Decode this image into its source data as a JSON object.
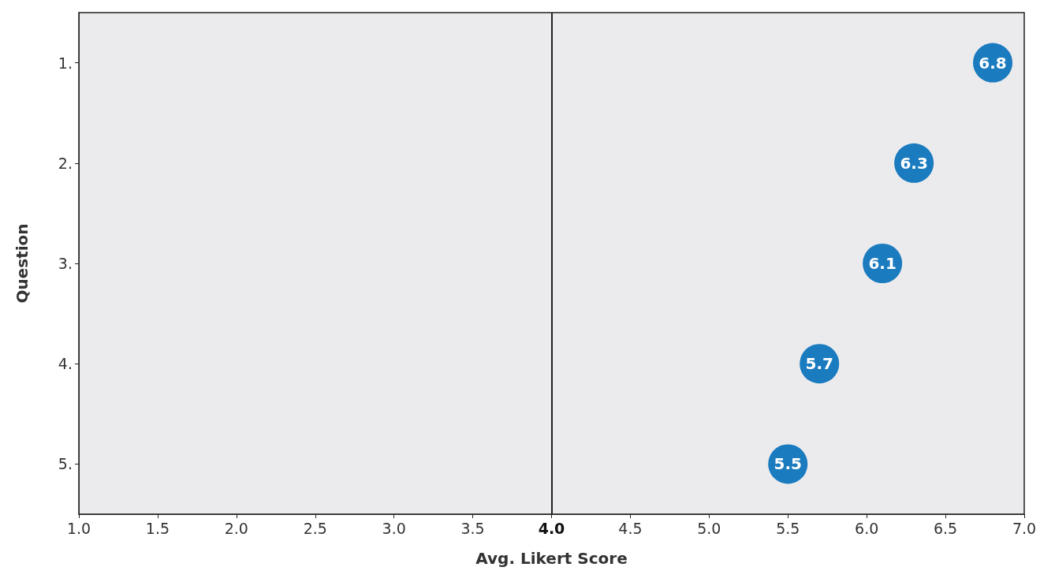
{
  "chart_data": {
    "type": "scatter",
    "orientation": "horizontal",
    "xlabel": "Avg. Likert Score",
    "ylabel": "Question",
    "categories": [
      "1.",
      "2.",
      "3.",
      "4.",
      "5."
    ],
    "values": [
      6.8,
      6.3,
      6.1,
      5.7,
      5.5
    ],
    "color": "#1a7bbf",
    "marker": "circle",
    "data_labels": true,
    "xlim": [
      1.0,
      7.0
    ],
    "xticks": [
      {
        "value": 1,
        "label": "1.0"
      },
      1.5,
      {
        "value": 2,
        "label": "2.0"
      },
      2.5,
      {
        "value": 3,
        "label": "3.0"
      },
      3.5,
      {
        "value": 4,
        "label": "4.0"
      },
      4.5,
      {
        "value": 5,
        "label": "5.0"
      },
      5.5,
      {
        "value": 6,
        "label": "6.0"
      },
      6.5,
      {
        "value": 7,
        "label": "7.0"
      }
    ],
    "ref_lines": [
      {
        "axis": "x",
        "value": 4,
        "color": "#222222"
      }
    ],
    "grid": false
  }
}
